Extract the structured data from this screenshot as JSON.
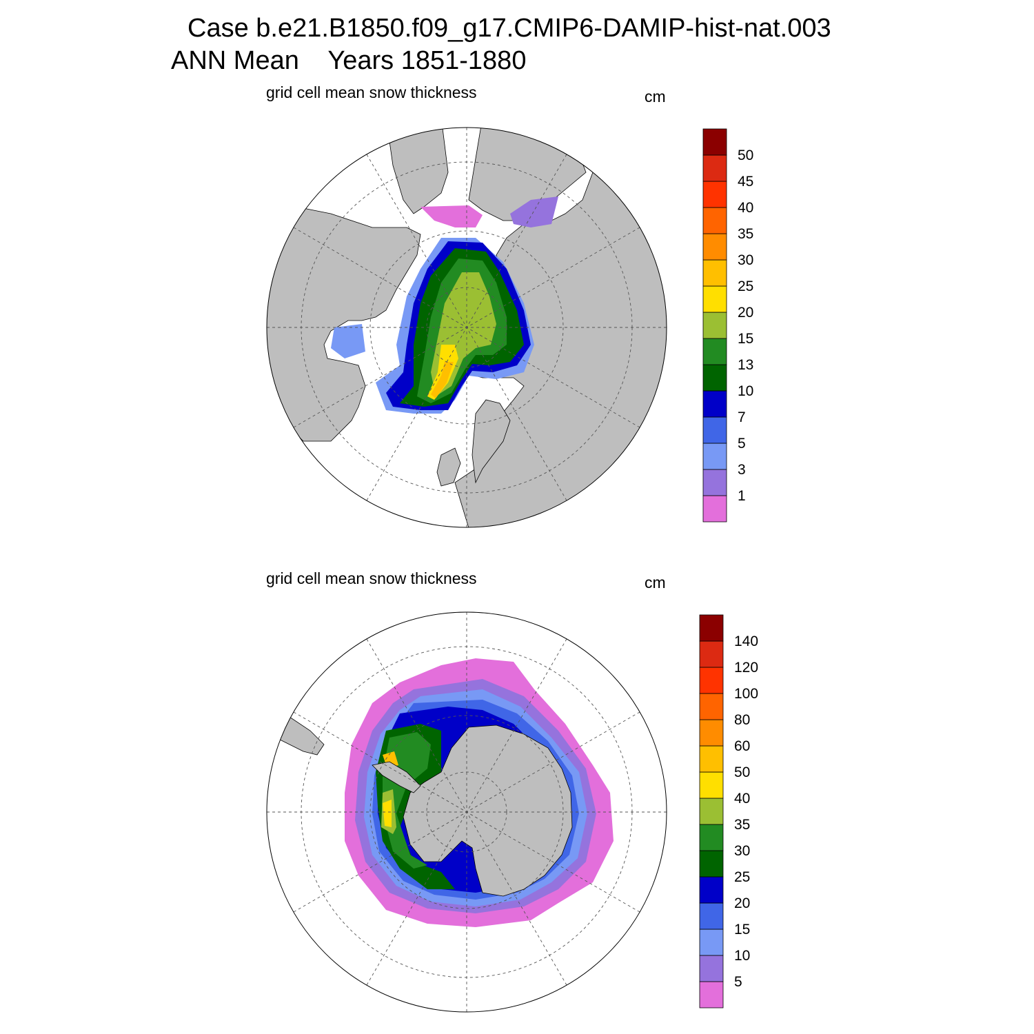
{
  "header": {
    "title_line1": "Case b.e21.B1850.f09_g17.CMIP6-DAMIP-hist-nat.003",
    "title_line2": "ANN Mean    Years 1851-1880"
  },
  "colors": {
    "land": "#bebebe",
    "no_ice": "#ffffff",
    "palette": [
      "#e36fdb",
      "#9573dd",
      "#7899f5",
      "#4066e7",
      "#0000c8",
      "#006400",
      "#228b22",
      "#9bbf33",
      "#ffdf00",
      "#ffbf00",
      "#ff8c00",
      "#ff6400",
      "#ff3300",
      "#dc2a12",
      "#8b0000"
    ]
  },
  "panels": [
    {
      "id": "north",
      "hemisphere": "Northern",
      "title": "grid cell mean snow thickness",
      "unit": "cm",
      "colorbar_levels": [
        "1",
        "3",
        "5",
        "7",
        "10",
        "13",
        "15",
        "20",
        "25",
        "30",
        "35",
        "40",
        "45",
        "50"
      ]
    },
    {
      "id": "south",
      "hemisphere": "Southern",
      "title": "grid cell mean snow thickness",
      "unit": "cm",
      "colorbar_levels": [
        "5",
        "10",
        "15",
        "20",
        "25",
        "30",
        "35",
        "40",
        "50",
        "60",
        "80",
        "100",
        "120",
        "140"
      ]
    }
  ]
}
